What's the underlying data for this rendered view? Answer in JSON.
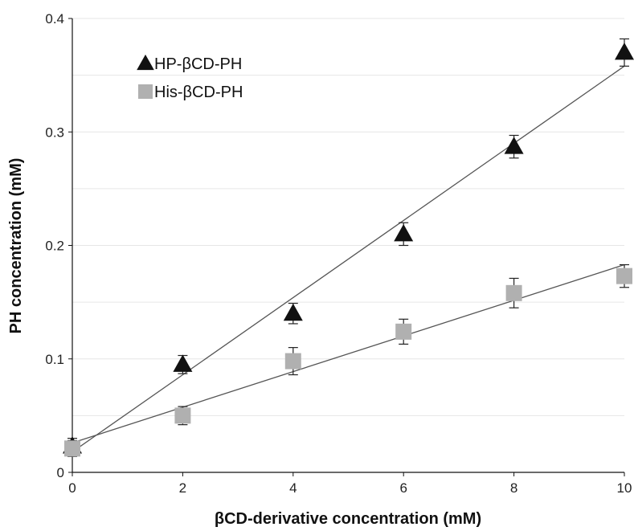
{
  "chart_data": {
    "type": "scatter",
    "title": "",
    "xlabel": "βCD-derivative concentration (mM)",
    "ylabel": "PH concentration (mM)",
    "xlim": [
      0,
      10
    ],
    "ylim": [
      0,
      0.4
    ],
    "xticks": [
      "0",
      "2",
      "4",
      "6",
      "8",
      "10"
    ],
    "yticks": [
      "0",
      "0.1",
      "0.2",
      "0.3",
      "0.4"
    ],
    "grid": "horizontal",
    "legend_position": "top-left",
    "series": [
      {
        "name": "HP-βCD-PH",
        "marker": "triangle",
        "color": "#111111",
        "x": [
          0,
          2,
          4,
          6,
          8,
          10
        ],
        "y": [
          0.023,
          0.095,
          0.14,
          0.21,
          0.287,
          0.37
        ],
        "error": [
          0.007,
          0.008,
          0.009,
          0.01,
          0.01,
          0.012
        ],
        "fit_line": {
          "x": [
            0,
            10
          ],
          "y": [
            0.018,
            0.358
          ]
        }
      },
      {
        "name": "His-βCD-PH",
        "marker": "square",
        "color": "#b0b0b0",
        "x": [
          0,
          2,
          4,
          6,
          8,
          10
        ],
        "y": [
          0.021,
          0.05,
          0.098,
          0.124,
          0.158,
          0.173
        ],
        "error": [
          0.007,
          0.008,
          0.012,
          0.011,
          0.013,
          0.01
        ],
        "fit_line": {
          "x": [
            0,
            10
          ],
          "y": [
            0.026,
            0.183
          ]
        }
      }
    ]
  },
  "colors": {
    "axis": "#111111",
    "grid": "#e6e6e6",
    "fit_line": "#555555"
  }
}
